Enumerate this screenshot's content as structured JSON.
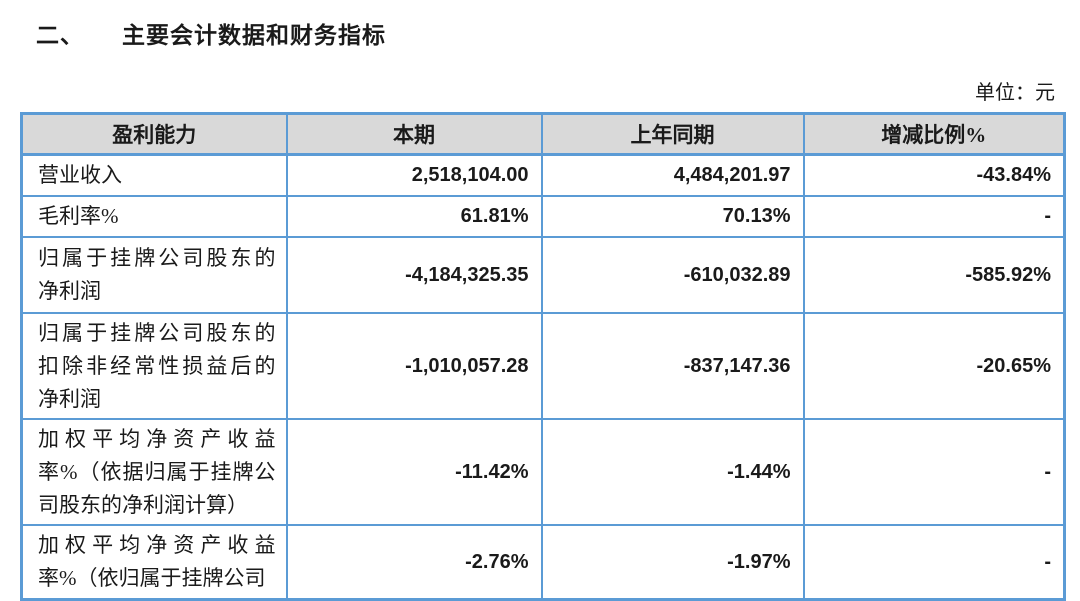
{
  "page": {
    "section_number": "二、",
    "section_title": "主要会计数据和财务指标",
    "unit_label": "单位：元"
  },
  "table": {
    "headers": [
      "盈利能力",
      "本期",
      "上年同期",
      "增减比例%"
    ],
    "rows": [
      {
        "label": "营业收入",
        "current": "2,518,104.00",
        "prior": "4,484,201.97",
        "change": "-43.84%"
      },
      {
        "label": "毛利率%",
        "current": "61.81%",
        "prior": "70.13%",
        "change": "-"
      },
      {
        "label": "归属于挂牌公司股东的\n净利润",
        "current": "-4,184,325.35",
        "prior": "-610,032.89",
        "change": "-585.92%"
      },
      {
        "label": "归属于挂牌公司股东的\n扣除非经常性损益后的\n净利润",
        "current": "-1,010,057.28",
        "prior": "-837,147.36",
        "change": "-20.65%"
      },
      {
        "label": "加权平均净资产收益\n率%（依据归属于挂牌公\n司股东的净利润计算）",
        "current": "-11.42%",
        "prior": "-1.44%",
        "change": "-"
      },
      {
        "label": "加权平均净资产收益\n率%（依归属于挂牌公司",
        "current": "-2.76%",
        "prior": "-1.97%",
        "change": "-"
      }
    ],
    "colors": {
      "border": "#5b9bd5",
      "header_bg": "#d9d9d9",
      "text": "#1a1a1a"
    }
  }
}
